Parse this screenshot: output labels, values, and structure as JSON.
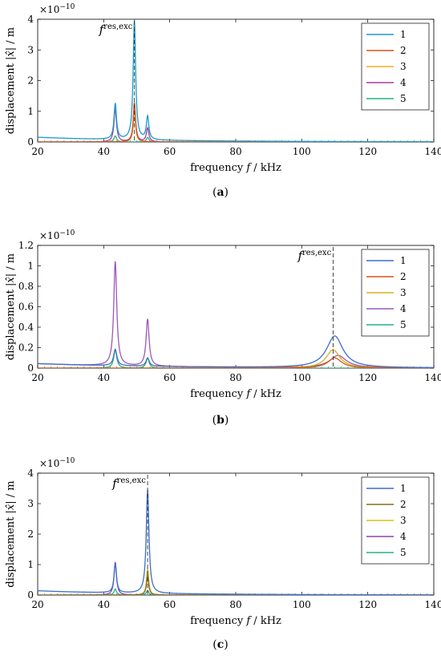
{
  "chart_data": [
    {
      "type": "line",
      "caption_letter": "a",
      "xlabel_prefix": "frequency ",
      "xlabel_var": "f",
      "xlabel_unit": " / kHz",
      "ylabel_prefix": "displacement |",
      "ylabel_var": "x̂",
      "ylabel_unit": "| / m",
      "exponent_base": "×10",
      "exponent": "−10",
      "xlim": [
        20,
        140
      ],
      "ylim": [
        0,
        4
      ],
      "xticks": [
        20,
        40,
        60,
        80,
        100,
        120,
        140
      ],
      "yticks": [
        0,
        1,
        2,
        3,
        4
      ],
      "ytick_labels": [
        "0",
        "1",
        "2",
        "3",
        "4"
      ],
      "annotation": {
        "var": "f",
        "sup": "res,exc",
        "x": 49.3
      },
      "legend_position": "top-right",
      "series": [
        {
          "name": "1",
          "color": "#1a9bc9",
          "baseline": 0.13,
          "decay": 0.45,
          "peaks": [
            {
              "f": 43.5,
              "h": 1.17,
              "w": 0.45
            },
            {
              "f": 49.3,
              "h": 3.9,
              "w": 0.45
            },
            {
              "f": 53.3,
              "h": 0.75,
              "w": 0.45
            }
          ]
        },
        {
          "name": "2",
          "color": "#d95319",
          "baseline": 0.0,
          "decay": 0.0,
          "peaks": [
            {
              "f": 49.3,
              "h": 1.3,
              "w": 0.4
            }
          ]
        },
        {
          "name": "3",
          "color": "#edb120",
          "baseline": 0.0,
          "decay": 0.0,
          "peaks": [
            {
              "f": 49.3,
              "h": 1.05,
              "w": 0.4
            }
          ]
        },
        {
          "name": "4",
          "color": "#a43fa0",
          "baseline": 0.0,
          "decay": 0.0,
          "peaks": [
            {
              "f": 43.5,
              "h": 1.08,
              "w": 0.45
            },
            {
              "f": 49.3,
              "h": 1.15,
              "w": 0.45
            },
            {
              "f": 53.3,
              "h": 0.45,
              "w": 0.45
            }
          ]
        },
        {
          "name": "5",
          "color": "#26b37f",
          "baseline": 0.0,
          "decay": 0.0,
          "peaks": [
            {
              "f": 43.5,
              "h": 0.2,
              "w": 0.45
            },
            {
              "f": 53.3,
              "h": 0.15,
              "w": 0.45
            }
          ]
        }
      ]
    },
    {
      "type": "line",
      "caption_letter": "b",
      "xlabel_prefix": "frequency ",
      "xlabel_var": "f",
      "xlabel_unit": " / kHz",
      "ylabel_prefix": "displacement |",
      "ylabel_var": "x̂",
      "ylabel_unit": "| / m",
      "exponent_base": "×10",
      "exponent": "−10",
      "xlim": [
        20,
        140
      ],
      "ylim": [
        0,
        1.2
      ],
      "xticks": [
        20,
        40,
        60,
        80,
        100,
        120,
        140
      ],
      "yticks": [
        0,
        0.2,
        0.4,
        0.6,
        0.8,
        1.0,
        1.2
      ],
      "ytick_labels": [
        "0",
        "0.2",
        "0.4",
        "0.6",
        "0.8",
        "1",
        "1.2"
      ],
      "annotation": {
        "var": "f",
        "sup": "res,exc",
        "x": 109.5
      },
      "legend_position": "top-right",
      "series": [
        {
          "name": "1",
          "color": "#3c6fc8",
          "baseline": 0.04,
          "decay": 0.08,
          "peaks": [
            {
              "f": 43.5,
              "h": 0.16,
              "w": 0.6
            },
            {
              "f": 53.3,
              "h": 0.08,
              "w": 0.6
            },
            {
              "f": 110.0,
              "h": 0.31,
              "w": 3.0
            }
          ]
        },
        {
          "name": "2",
          "color": "#d95319",
          "baseline": 0.0,
          "decay": 0.0,
          "peaks": [
            {
              "f": 110.0,
              "h": 0.1,
              "w": 2.5
            }
          ]
        },
        {
          "name": "3",
          "color": "#d6b31a",
          "baseline": 0.0,
          "decay": 0.0,
          "peaks": [
            {
              "f": 109.5,
              "h": 0.18,
              "w": 2.5
            }
          ]
        },
        {
          "name": "4",
          "color": "#9b59b6",
          "baseline": 0.04,
          "decay": 0.05,
          "peaks": [
            {
              "f": 43.5,
              "h": 1.02,
              "w": 0.55
            },
            {
              "f": 53.3,
              "h": 0.46,
              "w": 0.55
            },
            {
              "f": 111.0,
              "h": 0.12,
              "w": 3.0
            }
          ]
        },
        {
          "name": "5",
          "color": "#26b37f",
          "baseline": 0.0,
          "decay": 0.0,
          "peaks": [
            {
              "f": 43.5,
              "h": 0.18,
              "w": 0.55
            },
            {
              "f": 53.3,
              "h": 0.1,
              "w": 0.55
            }
          ]
        }
      ]
    },
    {
      "type": "line",
      "caption_letter": "c",
      "xlabel_prefix": "frequency ",
      "xlabel_var": "f",
      "xlabel_unit": " / kHz",
      "ylabel_prefix": "displacement |",
      "ylabel_var": "x̂",
      "ylabel_unit": "| / m",
      "exponent_base": "×10",
      "exponent": "−10",
      "xlim": [
        20,
        140
      ],
      "ylim": [
        0,
        4
      ],
      "xticks": [
        20,
        40,
        60,
        80,
        100,
        120,
        140
      ],
      "yticks": [
        0,
        1,
        2,
        3,
        4
      ],
      "ytick_labels": [
        "0",
        "1",
        "2",
        "3",
        "4"
      ],
      "annotation": {
        "var": "f",
        "sup": "res,exc",
        "x": 53.3
      },
      "legend_position": "top-right",
      "series": [
        {
          "name": "1",
          "color": "#3c6fc8",
          "baseline": 0.12,
          "decay": 0.4,
          "peaks": [
            {
              "f": 43.5,
              "h": 0.95,
              "w": 0.45
            },
            {
              "f": 53.3,
              "h": 3.4,
              "w": 0.5
            }
          ]
        },
        {
          "name": "2",
          "color": "#8c6d1f",
          "baseline": 0.0,
          "decay": 0.0,
          "peaks": [
            {
              "f": 53.3,
              "h": 0.65,
              "w": 0.4
            }
          ]
        },
        {
          "name": "3",
          "color": "#d6c21a",
          "baseline": 0.0,
          "decay": 0.0,
          "peaks": [
            {
              "f": 53.3,
              "h": 0.88,
              "w": 0.4
            }
          ]
        },
        {
          "name": "4",
          "color": "#8e44ad",
          "baseline": 0.0,
          "decay": 0.0,
          "peaks": [
            {
              "f": 43.5,
              "h": 1.08,
              "w": 0.45
            },
            {
              "f": 53.3,
              "h": 0.6,
              "w": 0.45
            }
          ]
        },
        {
          "name": "5",
          "color": "#26b37f",
          "baseline": 0.0,
          "decay": 0.0,
          "peaks": [
            {
              "f": 43.5,
              "h": 0.2,
              "w": 0.45
            },
            {
              "f": 53.3,
              "h": 0.15,
              "w": 0.45
            }
          ]
        }
      ]
    }
  ]
}
